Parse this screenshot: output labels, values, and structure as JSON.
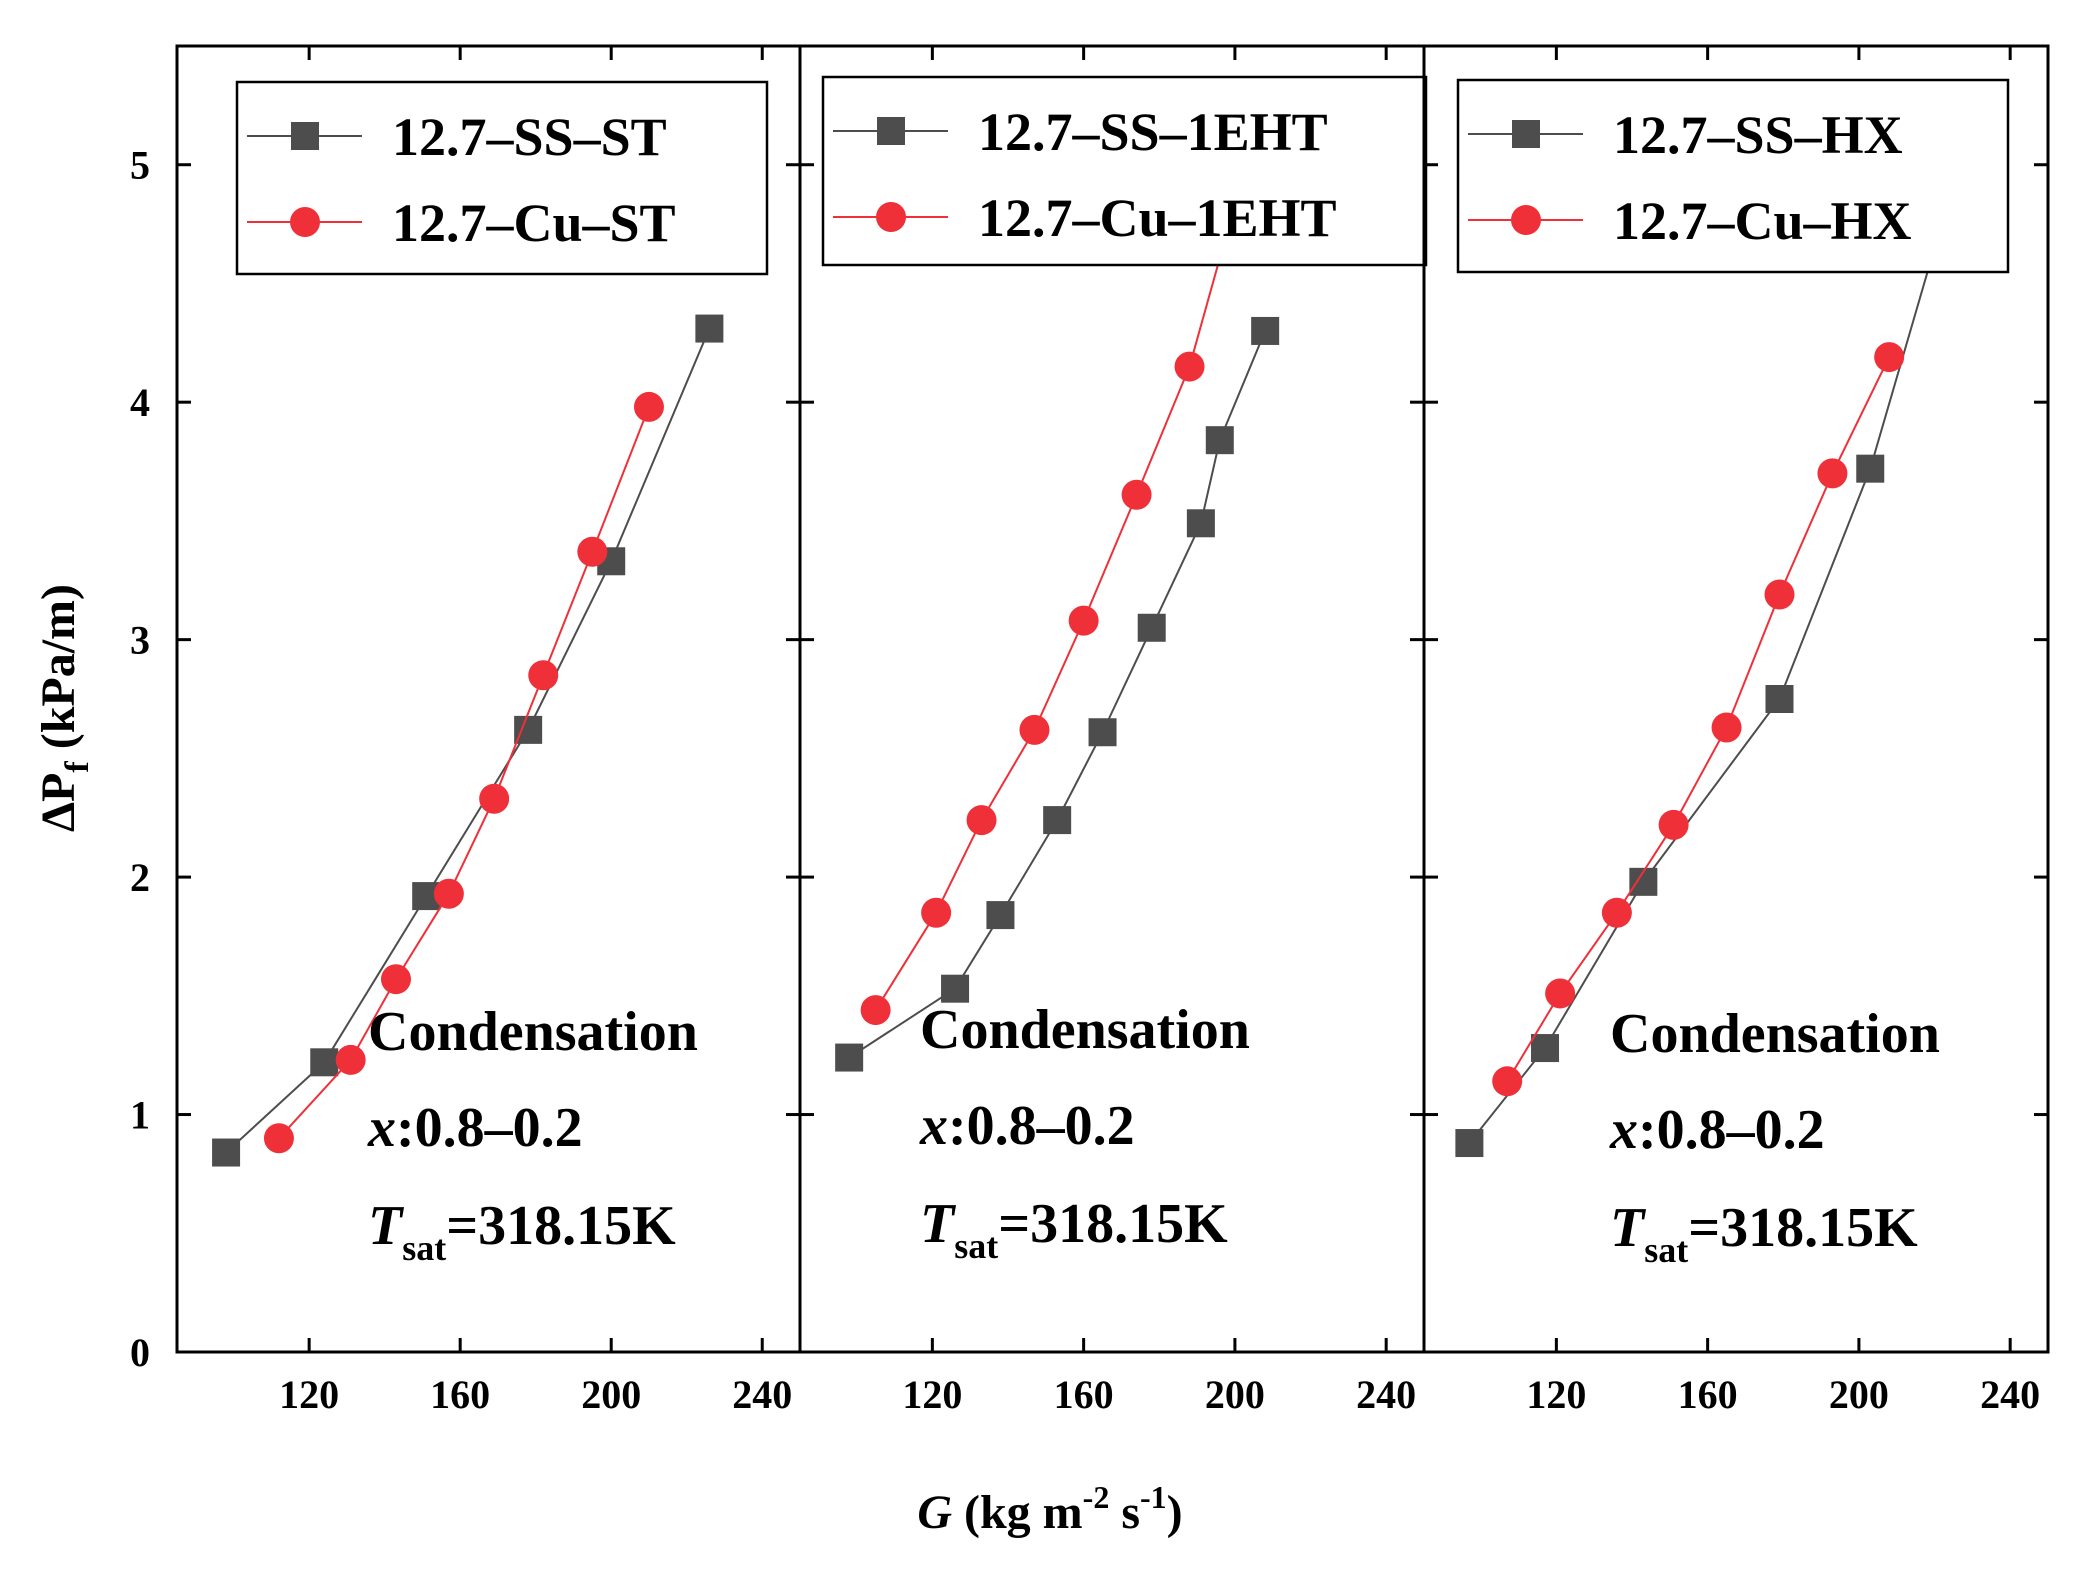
{
  "chart_data": {
    "type": "line",
    "xlabel": {
      "main": "G",
      "unit_open": " (kg m",
      "sup1": "-2",
      "mid": " s",
      "sup2": "-1",
      "unit_close": ")"
    },
    "ylabel": {
      "main": "ΔP",
      "sub": "f",
      "unit": " (kPa/m)"
    },
    "xlim": [
      85,
      250
    ],
    "ylim": [
      0,
      5.5
    ],
    "x_ticks": [
      120,
      160,
      200,
      240
    ],
    "x_tick_labels": [
      "120",
      "160",
      "200",
      "240"
    ],
    "y_ticks": [
      0,
      1,
      2,
      3,
      4,
      5
    ],
    "y_tick_labels": [
      "0",
      "1",
      "2",
      "3",
      "4",
      "5"
    ],
    "annotation": {
      "line1": "Condensation",
      "line2_var": "x",
      "line2_rest": ":0.8–0.2",
      "line3_var": "T",
      "line3_sub": "sat",
      "line3_rest": "=318.15K"
    },
    "colors": {
      "ss": "#4d4d4d",
      "cu": "#ef3038",
      "axis": "#000000"
    },
    "panels": [
      {
        "series": [
          {
            "name": "12.7–SS–ST",
            "marker": "square",
            "color": "#4d4d4d",
            "x": [
              98,
              124,
              151,
              178,
              200,
              226
            ],
            "y": [
              0.84,
              1.22,
              1.92,
              2.62,
              3.33,
              4.31
            ],
            "extend_to": [
              226,
              4.31
            ]
          },
          {
            "name": "12.7–Cu–ST",
            "marker": "circle",
            "color": "#ef3038",
            "x": [
              112,
              131,
              143,
              157,
              169,
              182,
              195,
              210
            ],
            "y": [
              0.9,
              1.23,
              1.57,
              1.93,
              2.33,
              2.85,
              3.37,
              3.98
            ],
            "extend_to": [
              210,
              3.98
            ]
          }
        ]
      },
      {
        "series": [
          {
            "name": "12.7–SS–1EHT",
            "marker": "square",
            "color": "#4d4d4d",
            "x": [
              98,
              126,
              138,
              153,
              165,
              178,
              191,
              196,
              208
            ],
            "y": [
              1.24,
              1.53,
              1.84,
              2.24,
              2.61,
              3.05,
              3.49,
              3.84,
              4.3
            ],
            "extend_to": [
              208,
              4.3
            ]
          },
          {
            "name": "12.7–Cu–1EHT",
            "marker": "circle",
            "color": "#ef3038",
            "x": [
              105,
              121,
              133,
              147,
              160,
              174,
              188
            ],
            "y": [
              1.44,
              1.85,
              2.24,
              2.62,
              3.08,
              3.61,
              4.15
            ],
            "extend_to": [
              198,
              4.72
            ]
          }
        ]
      },
      {
        "series": [
          {
            "name": "12.7–SS–HX",
            "marker": "square",
            "color": "#4d4d4d",
            "x": [
              97,
              117,
              143,
              179,
              203
            ],
            "y": [
              0.88,
              1.28,
              1.98,
              2.75,
              3.72
            ],
            "extend_to": [
              220,
              4.65
            ]
          },
          {
            "name": "12.7–Cu–HX",
            "marker": "circle",
            "color": "#ef3038",
            "x": [
              107,
              121,
              136,
              151,
              165,
              179,
              193,
              208
            ],
            "y": [
              1.14,
              1.51,
              1.85,
              2.22,
              2.63,
              3.19,
              3.7,
              4.19
            ],
            "extend_to": [
              208,
              4.19
            ]
          }
        ]
      }
    ]
  }
}
